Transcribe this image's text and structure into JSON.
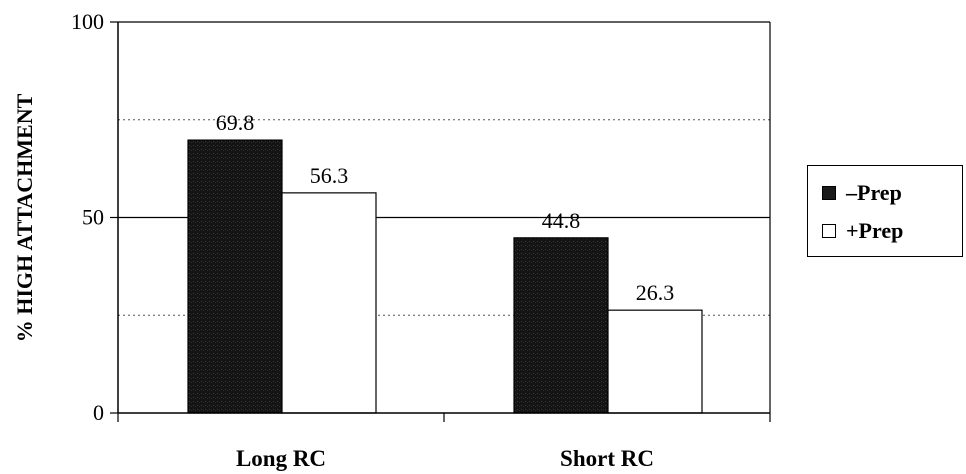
{
  "chart_data": {
    "type": "bar",
    "title": "",
    "ylabel": "% HIGH ATTACHMENT",
    "xlabel": "",
    "ylim": [
      0,
      100
    ],
    "yticks": [
      "0",
      "50",
      "100"
    ],
    "categories": [
      "Long RC",
      "Short RC"
    ],
    "series": [
      {
        "name": "–Prep",
        "values": [
          69.8,
          44.8
        ],
        "color": "#1a1a1a",
        "value_labels": [
          "69.8",
          "44.8"
        ]
      },
      {
        "name": "+Prep",
        "values": [
          56.3,
          26.3
        ],
        "color": "#ffffff",
        "value_labels": [
          "56.3",
          "26.3"
        ]
      }
    ],
    "gridlines": [
      25,
      50,
      75
    ],
    "legend_position": "right"
  }
}
